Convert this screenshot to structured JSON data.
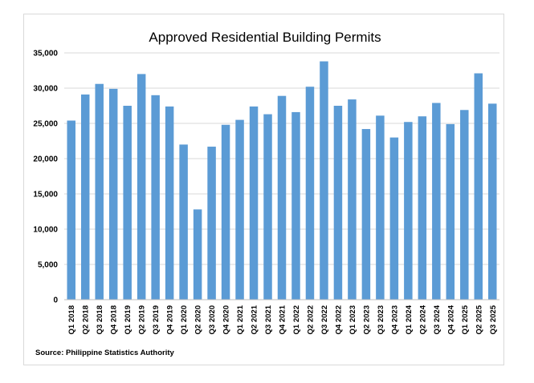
{
  "chart_data": {
    "type": "bar",
    "title": "Approved Residential Building Permits",
    "source": "Source:  Philippine Statistics Authority",
    "categories": [
      "Q1 2018",
      "Q2 2018",
      "Q3 2018",
      "Q4 2018",
      "Q1 2019",
      "Q2 2019",
      "Q3 2019",
      "Q4 2019",
      "Q1 2020",
      "Q2 2020",
      "Q3 2020",
      "Q4 2020",
      "Q1 2021",
      "Q2 2021",
      "Q3 2021",
      "Q4 2021",
      "Q1 2022",
      "Q2 2022",
      "Q3 2022",
      "Q4 2022",
      "Q1 2023",
      "Q2 2023",
      "Q3 2023",
      "Q4 2023",
      "Q1 2024",
      "Q2 2024",
      "Q3 2024",
      "Q4 2024",
      "Q1 2025",
      "Q2 2025",
      "Q3 2025"
    ],
    "values": [
      25400,
      29100,
      30600,
      29900,
      27500,
      32000,
      29000,
      27400,
      22000,
      12800,
      21700,
      24800,
      25500,
      27400,
      26300,
      28900,
      26600,
      30200,
      33800,
      27500,
      28400,
      24200,
      26100,
      23000,
      25200,
      26000,
      27900,
      24900,
      26900,
      32100,
      27800
    ],
    "ylim": [
      0,
      35000
    ],
    "yticks": [
      "0",
      "5,000",
      "10,000",
      "15,000",
      "20,000",
      "25,000",
      "30,000",
      "35,000"
    ],
    "bar_color": "#5B9BD5",
    "grid": true,
    "legend": "none"
  }
}
